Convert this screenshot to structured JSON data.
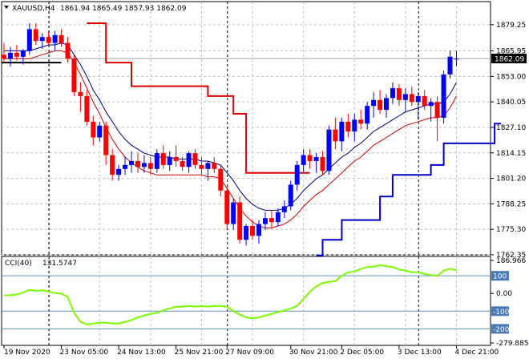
{
  "window": {
    "symbol_tf": "XAUUSD,H4",
    "ohlc_text": "1861.94 1865.49 1857.93 1862.09"
  },
  "colors": {
    "bull": "#0000ff",
    "bear": "#ff0000",
    "upper_band": "#dd0000",
    "lower_band": "#0000cc",
    "ma_dark": "#000080",
    "ma_red": "#cc0000",
    "cci_line": "#7cfc00",
    "grid": "#c0c0c0",
    "price_level": "#000000",
    "label_bg": "#000000",
    "label_fg": "#ffffff"
  },
  "chart_data": [
    {
      "type": "candlestick",
      "title": "XAUUSD,H4",
      "symbol": "XAUUSD",
      "timeframe": "H4",
      "last": {
        "open": 1861.94,
        "high": 1865.49,
        "low": 1857.93,
        "close": 1862.09
      },
      "current_price_label": "1862.09",
      "ylim": [
        1762.35,
        1891.0
      ],
      "y_ticks": [
        "1879.25",
        "1865.95",
        "1853.00",
        "1840.05",
        "1827.10",
        "1814.15",
        "1801.20",
        "1788.25",
        "1775.30",
        "1762.35"
      ],
      "x_ticks": [
        "19 Nov 2020",
        "23 Nov 05:00",
        "24 Nov 13:00",
        "25 Nov 21:00",
        "27 Nov 09:00",
        "30 Nov 21:00",
        "2 Dec 05:00",
        "3 Dec 13:00",
        "4 Dec 21:00"
      ],
      "horizontal_level": 1860.0,
      "grid": true,
      "candles": [
        [
          1864,
          1870,
          1860,
          1862
        ],
        [
          1862,
          1868,
          1858,
          1865
        ],
        [
          1865,
          1869,
          1861,
          1863
        ],
        [
          1863,
          1867,
          1859,
          1866
        ],
        [
          1866,
          1880,
          1864,
          1877
        ],
        [
          1877,
          1880,
          1869,
          1871
        ],
        [
          1871,
          1875,
          1867,
          1873
        ],
        [
          1873,
          1876,
          1869,
          1870
        ],
        [
          1870,
          1876,
          1866,
          1874
        ],
        [
          1874,
          1877,
          1868,
          1870
        ],
        [
          1870,
          1873,
          1860,
          1862
        ],
        [
          1862,
          1864,
          1843,
          1845
        ],
        [
          1845,
          1850,
          1835,
          1843
        ],
        [
          1843,
          1846,
          1828,
          1830
        ],
        [
          1830,
          1833,
          1818,
          1822
        ],
        [
          1822,
          1830,
          1820,
          1828
        ],
        [
          1828,
          1830,
          1808,
          1813
        ],
        [
          1813,
          1816,
          1800,
          1803
        ],
        [
          1803,
          1808,
          1800,
          1806
        ],
        [
          1806,
          1812,
          1803,
          1808
        ],
        [
          1808,
          1815,
          1804,
          1810
        ],
        [
          1810,
          1814,
          1804,
          1807
        ],
        [
          1807,
          1813,
          1804,
          1809
        ],
        [
          1809,
          1812,
          1803,
          1806
        ],
        [
          1806,
          1816,
          1804,
          1814
        ],
        [
          1814,
          1818,
          1806,
          1808
        ],
        [
          1808,
          1815,
          1805,
          1812
        ],
        [
          1812,
          1818,
          1807,
          1810
        ],
        [
          1810,
          1812,
          1805,
          1807
        ],
        [
          1807,
          1815,
          1804,
          1814
        ],
        [
          1814,
          1816,
          1806,
          1808
        ],
        [
          1808,
          1812,
          1803,
          1806
        ],
        [
          1806,
          1810,
          1800,
          1809
        ],
        [
          1809,
          1812,
          1804,
          1806
        ],
        [
          1806,
          1808,
          1792,
          1795
        ],
        [
          1795,
          1797,
          1775,
          1778
        ],
        [
          1778,
          1791,
          1775,
          1789
        ],
        [
          1789,
          1792,
          1768,
          1770
        ],
        [
          1770,
          1778,
          1767,
          1777
        ],
        [
          1777,
          1780,
          1770,
          1772
        ],
        [
          1772,
          1780,
          1768,
          1778
        ],
        [
          1778,
          1784,
          1775,
          1781
        ],
        [
          1781,
          1785,
          1776,
          1779
        ],
        [
          1779,
          1786,
          1777,
          1784
        ],
        [
          1784,
          1790,
          1781,
          1787
        ],
        [
          1787,
          1800,
          1785,
          1798
        ],
        [
          1798,
          1810,
          1795,
          1808
        ],
        [
          1808,
          1816,
          1804,
          1813
        ],
        [
          1813,
          1816,
          1806,
          1810
        ],
        [
          1810,
          1814,
          1804,
          1812
        ],
        [
          1812,
          1815,
          1803,
          1805
        ],
        [
          1805,
          1828,
          1803,
          1826
        ],
        [
          1826,
          1832,
          1816,
          1820
        ],
        [
          1820,
          1832,
          1815,
          1830
        ],
        [
          1830,
          1834,
          1822,
          1825
        ],
        [
          1825,
          1834,
          1820,
          1831
        ],
        [
          1831,
          1836,
          1826,
          1829
        ],
        [
          1829,
          1840,
          1826,
          1838
        ],
        [
          1838,
          1845,
          1832,
          1841
        ],
        [
          1841,
          1846,
          1834,
          1836
        ],
        [
          1836,
          1844,
          1832,
          1842
        ],
        [
          1842,
          1850,
          1839,
          1847
        ],
        [
          1847,
          1849,
          1838,
          1841
        ],
        [
          1841,
          1847,
          1835,
          1844
        ],
        [
          1844,
          1848,
          1838,
          1840
        ],
        [
          1840,
          1845,
          1831,
          1843
        ],
        [
          1843,
          1846,
          1836,
          1838
        ],
        [
          1838,
          1842,
          1830,
          1840
        ],
        [
          1840,
          1843,
          1820,
          1832
        ],
        [
          1832,
          1856,
          1829,
          1854
        ],
        [
          1854,
          1866,
          1852,
          1863
        ],
        [
          1862,
          1866,
          1858,
          1862
        ]
      ],
      "series": [
        {
          "name": "",
          "color": "#dd0000",
          "kind": "step",
          "points": [
            [
              13,
              1880
            ],
            [
              16,
              1860
            ],
            [
              20,
              1848
            ],
            [
              32,
              1843
            ],
            [
              36,
              1834
            ],
            [
              38,
              1804
            ],
            [
              48,
              1804
            ]
          ]
        },
        {
          "name": "",
          "color": "#0000cc",
          "kind": "step",
          "points": [
            [
              49,
              1762
            ],
            [
              50,
              1770
            ],
            [
              53,
              1780
            ],
            [
              59,
              1792
            ],
            [
              61,
              1803
            ],
            [
              67,
              1808
            ],
            [
              69,
              1819
            ],
            [
              76,
              1819
            ],
            [
              77,
              1829
            ],
            [
              78,
              1829
            ]
          ]
        },
        {
          "name": "",
          "color": "#000080",
          "kind": "line",
          "values": [
            1866,
            1866,
            1866,
            1866,
            1866,
            1867,
            1868,
            1869,
            1869,
            1870,
            1869,
            1864,
            1859,
            1853,
            1846,
            1841,
            1835,
            1830,
            1825,
            1821,
            1818,
            1816,
            1814,
            1813,
            1812,
            1812,
            1812,
            1811,
            1811,
            1811,
            1811,
            1810,
            1810,
            1809,
            1808,
            1804,
            1800,
            1795,
            1791,
            1788,
            1786,
            1785,
            1785,
            1785,
            1786,
            1788,
            1791,
            1795,
            1798,
            1801,
            1803,
            1806,
            1809,
            1812,
            1814,
            1817,
            1819,
            1822,
            1825,
            1827,
            1829,
            1831,
            1833,
            1835,
            1836,
            1837,
            1838,
            1839,
            1839,
            1840,
            1844,
            1850
          ]
        },
        {
          "name": "",
          "color": "#cc0000",
          "kind": "line",
          "values": [
            1862,
            1862,
            1862,
            1862,
            1862,
            1863,
            1864,
            1865,
            1866,
            1866,
            1865,
            1860,
            1854,
            1847,
            1840,
            1834,
            1827,
            1821,
            1816,
            1812,
            1809,
            1807,
            1805,
            1804,
            1803,
            1803,
            1803,
            1803,
            1803,
            1803,
            1803,
            1803,
            1802,
            1802,
            1801,
            1796,
            1791,
            1786,
            1782,
            1779,
            1777,
            1776,
            1776,
            1777,
            1778,
            1780,
            1783,
            1787,
            1790,
            1793,
            1795,
            1798,
            1801,
            1804,
            1807,
            1810,
            1812,
            1815,
            1818,
            1820,
            1822,
            1824,
            1826,
            1828,
            1829,
            1830,
            1831,
            1832,
            1832,
            1833,
            1837,
            1843
          ]
        }
      ]
    },
    {
      "type": "line",
      "title": "CCI(40) 131.5747",
      "indicator_label": "CCI(40)",
      "value_label": "131.5747",
      "ylim": [
        -279.8854,
        186.966
      ],
      "y_ticks": [
        "186.966",
        "0.00",
        "-279.8854"
      ],
      "levels": [
        100,
        -100,
        -200
      ],
      "level_labels": [
        "100",
        "-100",
        "-200"
      ],
      "series": [
        {
          "name": "",
          "color": "#7cfc00",
          "values": [
            -10,
            -10,
            -5,
            5,
            20,
            15,
            18,
            10,
            2,
            0,
            -20,
            -110,
            -160,
            -175,
            -170,
            -165,
            -165,
            -170,
            -170,
            -160,
            -150,
            -135,
            -125,
            -115,
            -110,
            -95,
            -85,
            -75,
            -75,
            -70,
            -75,
            -70,
            -75,
            -70,
            -70,
            -75,
            -100,
            -120,
            -135,
            -140,
            -135,
            -125,
            -115,
            -105,
            -95,
            -85,
            -70,
            -30,
            10,
            40,
            60,
            65,
            70,
            100,
            120,
            125,
            140,
            150,
            152,
            160,
            155,
            150,
            135,
            130,
            120,
            120,
            110,
            105,
            100,
            130,
            140,
            131.5747
          ]
        }
      ]
    }
  ]
}
